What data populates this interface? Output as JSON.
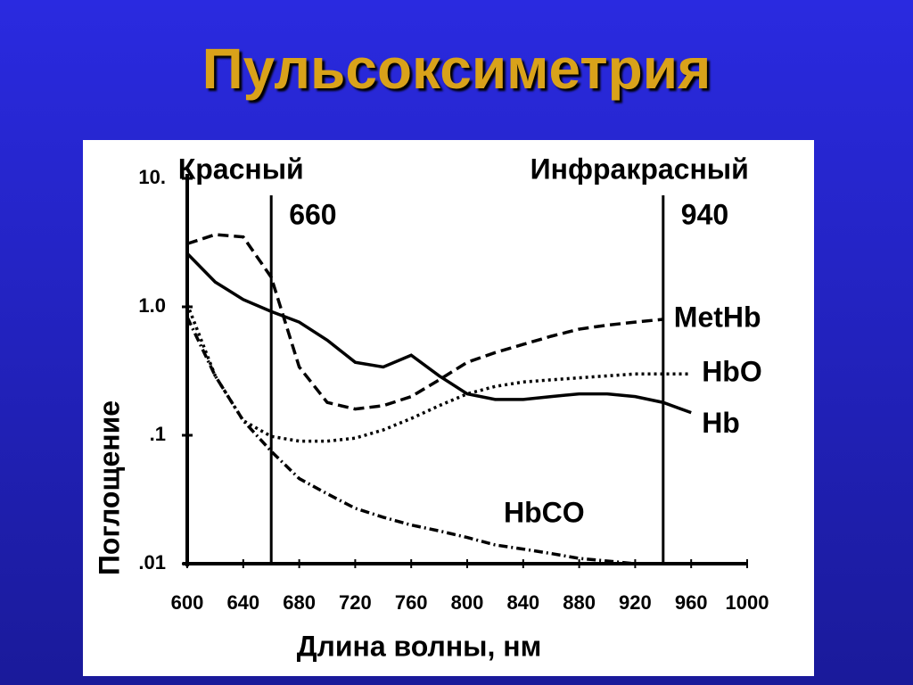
{
  "chart_data": {
    "type": "line",
    "title": "Пульсоксиметрия",
    "xlabel": "Длина волны, нм",
    "ylabel": "Поглощение",
    "x": [
      600,
      620,
      640,
      660,
      680,
      700,
      720,
      740,
      760,
      780,
      800,
      820,
      840,
      860,
      880,
      900,
      920,
      940,
      960
    ],
    "series": [
      {
        "name": "MetHb",
        "color": "#000000",
        "style": "dashed",
        "values": [
          3.1,
          3.65,
          3.5,
          1.7,
          0.34,
          0.18,
          0.16,
          0.17,
          0.2,
          0.27,
          0.37,
          0.44,
          0.51,
          0.59,
          0.67,
          0.72,
          0.76,
          0.8,
          null
        ]
      },
      {
        "name": "HbO",
        "color": "#000000",
        "style": "dotted",
        "values": [
          1.05,
          0.29,
          0.13,
          0.098,
          0.09,
          0.09,
          0.095,
          0.11,
          0.135,
          0.17,
          0.21,
          0.24,
          0.26,
          0.27,
          0.28,
          0.29,
          0.3,
          0.3,
          0.3
        ]
      },
      {
        "name": "Hb",
        "color": "#000000",
        "style": "solid",
        "values": [
          2.6,
          1.56,
          1.14,
          0.92,
          0.76,
          0.55,
          0.37,
          0.34,
          0.42,
          0.29,
          0.21,
          0.19,
          0.19,
          0.2,
          0.21,
          0.21,
          0.2,
          0.18,
          0.15
        ]
      },
      {
        "name": "HbCO",
        "color": "#000000",
        "style": "dashdot",
        "values": [
          0.83,
          0.29,
          0.13,
          0.075,
          0.046,
          0.035,
          0.027,
          0.023,
          0.02,
          0.018,
          0.016,
          0.014,
          0.013,
          0.012,
          0.011,
          0.0105,
          0.01,
          null,
          null
        ]
      }
    ],
    "markers": [
      {
        "name": "Красный",
        "x": 660
      },
      {
        "name": "Инфракрасный",
        "x": 940
      }
    ],
    "xlim": [
      600,
      1000
    ],
    "xticks": [
      600,
      640,
      680,
      720,
      760,
      800,
      840,
      880,
      920,
      960,
      1000
    ],
    "ylim": [
      0.01,
      10
    ],
    "yscale": "log",
    "yticks": [
      {
        "value": 0.01,
        "label": ".01"
      },
      {
        "value": 0.1,
        "label": ".1"
      },
      {
        "value": 1,
        "label": "1.0"
      },
      {
        "value": 10,
        "label": "10."
      }
    ]
  }
}
